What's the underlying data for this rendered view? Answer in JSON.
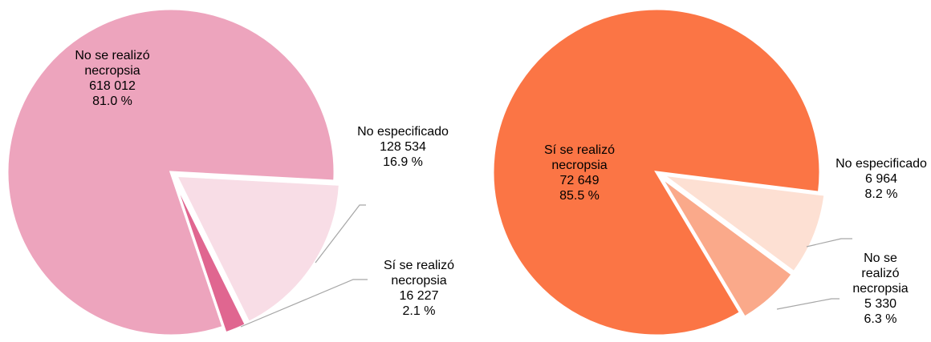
{
  "chart_data": [
    {
      "type": "pie",
      "categories": [
        "No se realizó necropsia",
        "No especificado",
        "Sí se realizó necropsia"
      ],
      "values": [
        618012,
        128534,
        16227
      ],
      "value_labels": [
        "618 012",
        "128 534",
        "16 227"
      ],
      "percents": [
        81.0,
        16.9,
        2.1
      ],
      "percent_labels": [
        "81.0 %",
        "16.9 %",
        "2.1 %"
      ],
      "colors": [
        "#eda4bd",
        "#f8dde6",
        "#e06690"
      ]
    },
    {
      "type": "pie",
      "categories": [
        "Sí se realizó necropsia",
        "No especificado",
        "No se realizó necropsia"
      ],
      "values": [
        72649,
        6964,
        5330
      ],
      "value_labels": [
        "72 649",
        "6 964",
        "5 330"
      ],
      "percents": [
        85.5,
        8.2,
        6.3
      ],
      "percent_labels": [
        "85.5 %",
        "8.2 %",
        "6.3 %"
      ],
      "colors": [
        "#fb7545",
        "#fde0d3",
        "#faa98a"
      ]
    }
  ]
}
